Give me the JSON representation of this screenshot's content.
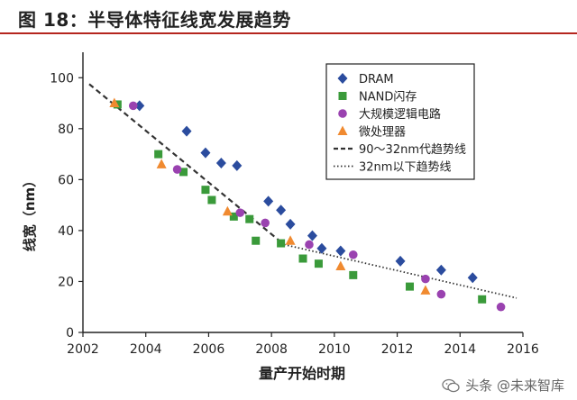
{
  "figure": {
    "title": "图 18：半导体特征线宽发展趋势"
  },
  "watermark": {
    "text": "头条 @未来智库",
    "icon": "wechat-icon"
  },
  "colors": {
    "dram": "#2b4c9e",
    "nand": "#3a9a3a",
    "logic": "#9a42b0",
    "micro": "#f08a30",
    "trend": "#333333",
    "title_rule": "#b5261e"
  },
  "chart_data": {
    "type": "scatter",
    "title": "",
    "xlabel": "量产开始时期",
    "ylabel": "线宽（nm）",
    "xlim": [
      2002,
      2016
    ],
    "ylim": [
      0,
      110
    ],
    "xticks": [
      2002,
      2004,
      2006,
      2008,
      2010,
      2012,
      2014,
      2016
    ],
    "yticks": [
      0,
      20,
      40,
      60,
      80,
      100
    ],
    "legend_position": "top-right",
    "series": [
      {
        "name": "DRAM",
        "marker": "diamond",
        "color": "#2b4c9e",
        "points": [
          [
            2003.8,
            89
          ],
          [
            2005.3,
            79
          ],
          [
            2005.9,
            70.5
          ],
          [
            2006.4,
            66.5
          ],
          [
            2006.9,
            65.5
          ],
          [
            2007.9,
            51.5
          ],
          [
            2008.3,
            48
          ],
          [
            2008.6,
            42.5
          ],
          [
            2009.3,
            38
          ],
          [
            2009.6,
            33
          ],
          [
            2010.2,
            32
          ],
          [
            2012.1,
            28
          ],
          [
            2013.4,
            24.5
          ],
          [
            2014.4,
            21.5
          ]
        ]
      },
      {
        "name": "NAND闪存",
        "marker": "square",
        "color": "#3a9a3a",
        "points": [
          [
            2003.1,
            89.5
          ],
          [
            2004.4,
            70
          ],
          [
            2005.2,
            63
          ],
          [
            2005.9,
            56
          ],
          [
            2006.1,
            52
          ],
          [
            2006.8,
            45.5
          ],
          [
            2007.3,
            44.5
          ],
          [
            2007.5,
            36
          ],
          [
            2008.3,
            35
          ],
          [
            2009.0,
            29
          ],
          [
            2009.5,
            27
          ],
          [
            2010.6,
            22.5
          ],
          [
            2012.4,
            18
          ],
          [
            2014.7,
            13
          ]
        ]
      },
      {
        "name": "大规模逻辑电路",
        "marker": "circle",
        "color": "#9a42b0",
        "points": [
          [
            2003.6,
            89
          ],
          [
            2005.0,
            64
          ],
          [
            2007.0,
            47
          ],
          [
            2007.8,
            43
          ],
          [
            2009.2,
            34.5
          ],
          [
            2010.6,
            30.5
          ],
          [
            2012.9,
            21
          ],
          [
            2013.4,
            15
          ],
          [
            2015.3,
            10
          ]
        ]
      },
      {
        "name": "微处理器",
        "marker": "triangle",
        "color": "#f08a30",
        "points": [
          [
            2003.0,
            90
          ],
          [
            2004.5,
            66
          ],
          [
            2006.6,
            47.5
          ],
          [
            2008.6,
            36
          ],
          [
            2010.2,
            26
          ],
          [
            2012.9,
            16.5
          ]
        ]
      }
    ],
    "trend_lines": [
      {
        "name": "90～32nm代趋势线",
        "style": "dashed",
        "points": [
          [
            2002.2,
            97.5
          ],
          [
            2008.4,
            34.5
          ]
        ]
      },
      {
        "name": "32nm以下趋势线",
        "style": "dotted",
        "points": [
          [
            2008.4,
            34.5
          ],
          [
            2015.8,
            13.5
          ]
        ]
      }
    ]
  }
}
